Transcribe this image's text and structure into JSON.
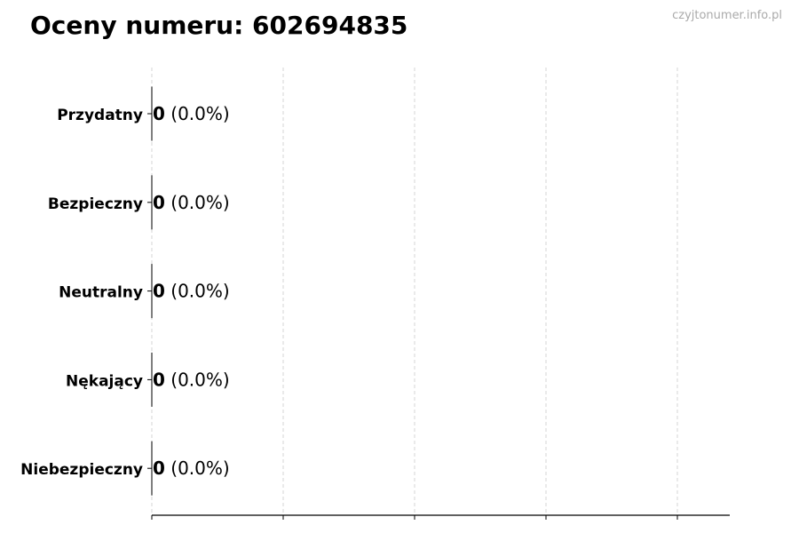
{
  "chart_data": {
    "type": "bar",
    "orientation": "horizontal",
    "title": "Oceny numeru: 602694835",
    "categories": [
      "Przydatny",
      "Bezpieczny",
      "Neutralny",
      "Nękający",
      "Niebezpieczny"
    ],
    "values": [
      0,
      0,
      0,
      0,
      0
    ],
    "data_labels": [
      {
        "count": "0",
        "percent": "(0.0%)"
      },
      {
        "count": "0",
        "percent": "(0.0%)"
      },
      {
        "count": "0",
        "percent": "(0.0%)"
      },
      {
        "count": "0",
        "percent": "(0.0%)"
      },
      {
        "count": "0",
        "percent": "(0.0%)"
      }
    ],
    "xlabel": "",
    "ylabel": "",
    "grid": "vertical dashed",
    "bar_edge_color": "#000000",
    "grid_color": "#cccccc"
  },
  "watermark": "czyjtonumer.info.pl"
}
